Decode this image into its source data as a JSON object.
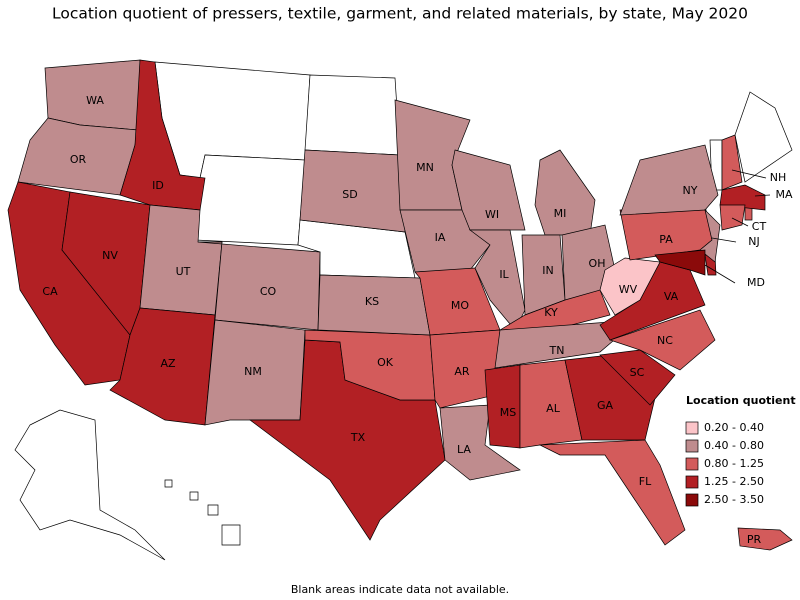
{
  "title": "Location quotient of pressers, textile, garment, and related materials, by state, May 2020",
  "legend": {
    "title": "Location quotient",
    "items": [
      {
        "label": "0.20 - 0.40",
        "color": "#fbc4c8"
      },
      {
        "label": "0.40 - 0.80",
        "color": "#bf8c8e"
      },
      {
        "label": "0.80 - 1.25",
        "color": "#d35b5b"
      },
      {
        "label": "1.25 - 2.50",
        "color": "#b22024"
      },
      {
        "label": "2.50 - 3.50",
        "color": "#8b0a0a"
      }
    ]
  },
  "states": [
    {
      "label": "WA",
      "color": "#bf8c8e"
    },
    {
      "label": "OR",
      "color": "#bf8c8e"
    },
    {
      "label": "CA",
      "color": "#b22024"
    },
    {
      "label": "NV",
      "color": "#b22024"
    },
    {
      "label": "ID",
      "color": "#b22024"
    },
    {
      "label": "UT",
      "color": "#bf8c8e"
    },
    {
      "label": "AZ",
      "color": "#b22024"
    },
    {
      "label": "CO",
      "color": "#bf8c8e"
    },
    {
      "label": "NM",
      "color": "#bf8c8e"
    },
    {
      "label": "TX",
      "color": "#b22024"
    },
    {
      "label": "OK",
      "color": "#d35b5b"
    },
    {
      "label": "KS",
      "color": "#bf8c8e"
    },
    {
      "label": "SD",
      "color": "#bf8c8e"
    },
    {
      "label": "MN",
      "color": "#bf8c8e"
    },
    {
      "label": "IA",
      "color": "#bf8c8e"
    },
    {
      "label": "MO",
      "color": "#d35b5b"
    },
    {
      "label": "AR",
      "color": "#d35b5b"
    },
    {
      "label": "LA",
      "color": "#bf8c8e"
    },
    {
      "label": "WI",
      "color": "#bf8c8e"
    },
    {
      "label": "IL",
      "color": "#bf8c8e"
    },
    {
      "label": "MI",
      "color": "#bf8c8e"
    },
    {
      "label": "IN",
      "color": "#bf8c8e"
    },
    {
      "label": "OH",
      "color": "#bf8c8e"
    },
    {
      "label": "KY",
      "color": "#d35b5b"
    },
    {
      "label": "TN",
      "color": "#bf8c8e"
    },
    {
      "label": "MS",
      "color": "#b22024"
    },
    {
      "label": "AL",
      "color": "#d35b5b"
    },
    {
      "label": "GA",
      "color": "#b22024"
    },
    {
      "label": "FL",
      "color": "#d35b5b"
    },
    {
      "label": "SC",
      "color": "#b22024"
    },
    {
      "label": "NC",
      "color": "#d35b5b"
    },
    {
      "label": "VA",
      "color": "#b22024"
    },
    {
      "label": "WV",
      "color": "#fbc4c8"
    },
    {
      "label": "PA",
      "color": "#d35b5b"
    },
    {
      "label": "NY",
      "color": "#bf8c8e"
    },
    {
      "label": "NJ",
      "color": "#bf8c8e"
    },
    {
      "label": "MD",
      "color": "#8b0a0a"
    },
    {
      "label": "NH",
      "color": "#d35b5b"
    },
    {
      "label": "MA",
      "color": "#b22024"
    },
    {
      "label": "CT",
      "color": "#d35b5b"
    },
    {
      "label": "PR",
      "color": "#d35b5b"
    }
  ],
  "footnote": "Blank areas indicate data not available."
}
